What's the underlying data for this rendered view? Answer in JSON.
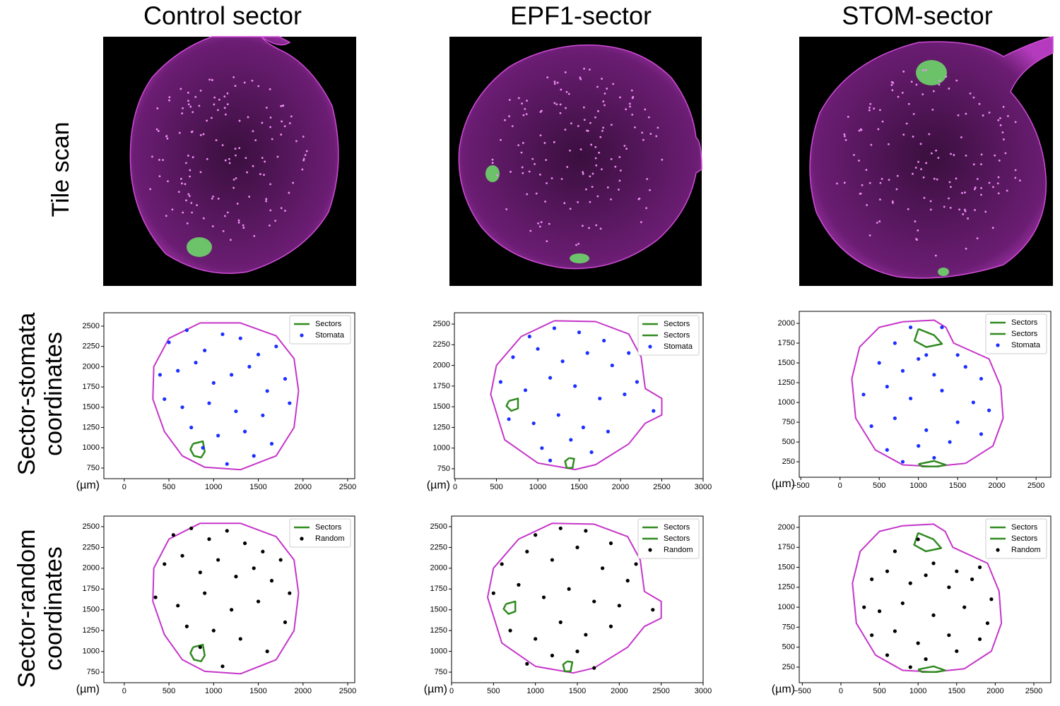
{
  "column_titles": [
    "Control sector",
    "EPF1-sector",
    "STOM-sector"
  ],
  "row_labels": [
    [
      "Tile scan"
    ],
    [
      "Sector-stomata",
      "coordinates"
    ],
    [
      "Sector-random",
      "coordinates"
    ]
  ],
  "chart_data": [
    {
      "type": "scatter",
      "x_label": "(µm)",
      "xlim": [
        -228,
        2579
      ],
      "ylim": [
        619,
        2665
      ],
      "xticks": [
        0,
        500,
        1000,
        1500,
        2000,
        2500
      ],
      "yticks": [
        750,
        1000,
        1250,
        1500,
        1750,
        2000,
        2250,
        2500
      ],
      "outline": {
        "color": "#c535c9",
        "x": [
          850,
          1300,
          1700,
          1900,
          1950,
          1900,
          1700,
          1300,
          900,
          650,
          450,
          320,
          330,
          500,
          850
        ],
        "y": [
          2540,
          2540,
          2380,
          2100,
          1700,
          1250,
          900,
          730,
          760,
          900,
          1200,
          1600,
          2000,
          2350,
          2540
        ]
      },
      "series": [
        {
          "name": "Sectors",
          "type": "line",
          "color": "#2f8a1f",
          "x": [
            770,
            880,
            900,
            860,
            780,
            740,
            770
          ],
          "y": [
            1050,
            1080,
            950,
            880,
            900,
            980,
            1050
          ]
        },
        {
          "name": "Stomata",
          "type": "scatter",
          "color": "#1c2fff",
          "x": [
            500,
            700,
            900,
            1100,
            1300,
            1500,
            1700,
            600,
            800,
            1000,
            1200,
            1400,
            1600,
            1800,
            450,
            650,
            950,
            1250,
            1550,
            1850,
            750,
            1050,
            1350,
            1650,
            400,
            1150,
            880,
            1450
          ],
          "y": [
            2300,
            2450,
            2200,
            2400,
            2350,
            2150,
            2250,
            1950,
            2050,
            1800,
            1900,
            2000,
            1700,
            1850,
            1600,
            1500,
            1550,
            1450,
            1400,
            1550,
            1250,
            1150,
            1200,
            1050,
            1900,
            800,
            1000,
            900
          ]
        }
      ]
    },
    {
      "type": "scatter",
      "x_label": "(µm)",
      "xlim": [
        -9,
        3000
      ],
      "ylim": [
        630,
        2637
      ],
      "xticks": [
        0,
        500,
        1000,
        1500,
        2000,
        2500,
        3000
      ],
      "yticks": [
        750,
        1000,
        1250,
        1500,
        1750,
        2000,
        2250,
        2500
      ],
      "outline": {
        "color": "#c535c9",
        "x": [
          1200,
          1700,
          2100,
          2250,
          2300,
          2500,
          2500,
          2300,
          2100,
          1700,
          1450,
          1000,
          600,
          430,
          500,
          800,
          1200
        ],
        "y": [
          2540,
          2530,
          2380,
          2100,
          1720,
          1600,
          1400,
          1300,
          1050,
          800,
          740,
          820,
          1100,
          1650,
          2000,
          2350,
          2540
        ]
      },
      "series": [
        {
          "name": "Sectors",
          "type": "line",
          "color": "#2f8a1f",
          "x": [
            650,
            760,
            760,
            680,
            620,
            650
          ],
          "y": [
            1570,
            1600,
            1480,
            1450,
            1510,
            1570
          ]
        },
        {
          "name": "Sectors",
          "type": "line",
          "color": "#2f8a1f",
          "x": [
            1380,
            1440,
            1420,
            1350,
            1330,
            1380
          ],
          "y": [
            880,
            870,
            760,
            760,
            840,
            880
          ]
        },
        {
          "name": "Stomata",
          "type": "scatter",
          "color": "#1c2fff",
          "x": [
            900,
            1200,
            1500,
            1800,
            2100,
            700,
            1000,
            1300,
            1600,
            1900,
            2200,
            550,
            850,
            1150,
            1450,
            1750,
            2050,
            2400,
            650,
            950,
            1250,
            1550,
            1850,
            1050,
            1650,
            1400,
            1150
          ],
          "y": [
            2350,
            2450,
            2400,
            2300,
            2150,
            2100,
            2200,
            2050,
            2150,
            2000,
            1800,
            1800,
            1700,
            1850,
            1750,
            1600,
            1650,
            1450,
            1350,
            1300,
            1400,
            1250,
            1200,
            1000,
            950,
            1100,
            850
          ]
        }
      ]
    },
    {
      "type": "scatter",
      "x_label": "(µm)",
      "xlim": [
        -520,
        2688
      ],
      "ylim": [
        54,
        2152
      ],
      "xticks": [
        {
          "value": -500,
          "label": "−500"
        },
        0,
        500,
        1000,
        1500,
        2000,
        2500
      ],
      "yticks": [
        250,
        500,
        750,
        1000,
        1250,
        1500,
        1750,
        2000
      ],
      "outline": {
        "color": "#c535c9",
        "x": [
          800,
          1200,
          1350,
          1450,
          1900,
          2050,
          2080,
          1950,
          1600,
          1200,
          800,
          450,
          200,
          150,
          250,
          500,
          800
        ],
        "y": [
          2020,
          2040,
          1950,
          1750,
          1550,
          1200,
          800,
          450,
          230,
          190,
          210,
          400,
          800,
          1300,
          1700,
          1950,
          2020
        ]
      },
      "series": [
        {
          "name": "Sectors",
          "type": "line",
          "color": "#2f8a1f",
          "x": [
            1000,
            1200,
            1300,
            1100,
            950,
            1000
          ],
          "y": [
            1930,
            1850,
            1740,
            1700,
            1780,
            1930
          ]
        },
        {
          "name": "Sectors",
          "type": "line",
          "color": "#2f8a1f",
          "x": [
            1000,
            1200,
            1350,
            1250,
            1050,
            1000
          ],
          "y": [
            220,
            260,
            210,
            190,
            190,
            220
          ]
        },
        {
          "name": "Stomata",
          "type": "scatter",
          "color": "#1c2fff",
          "x": [
            900,
            1100,
            1300,
            700,
            1500,
            500,
            800,
            1000,
            1200,
            1600,
            1800,
            300,
            600,
            900,
            1300,
            1700,
            1900,
            400,
            700,
            1100,
            1500,
            1800,
            600,
            1000,
            1400,
            1200,
            800
          ],
          "y": [
            1950,
            1600,
            1950,
            1750,
            1600,
            1500,
            1400,
            1550,
            1350,
            1450,
            1300,
            1100,
            1200,
            1050,
            1150,
            1000,
            900,
            700,
            800,
            650,
            750,
            600,
            400,
            450,
            500,
            300,
            250
          ]
        }
      ]
    },
    {
      "type": "scatter",
      "x_label": "(µm)",
      "xlim": [
        -228,
        2579
      ],
      "ylim": [
        623,
        2627
      ],
      "xticks": [
        0,
        500,
        1000,
        1500,
        2000,
        2500
      ],
      "yticks": [
        750,
        1000,
        1250,
        1500,
        1750,
        2000,
        2250,
        2500
      ],
      "outline": {
        "color": "#c535c9",
        "x": [
          850,
          1300,
          1700,
          1900,
          1950,
          1900,
          1700,
          1300,
          900,
          650,
          450,
          320,
          330,
          500,
          850
        ],
        "y": [
          2540,
          2540,
          2380,
          2100,
          1700,
          1250,
          900,
          730,
          760,
          900,
          1200,
          1600,
          2000,
          2350,
          2540
        ]
      },
      "series": [
        {
          "name": "Sectors",
          "type": "line",
          "color": "#2f8a1f",
          "x": [
            770,
            880,
            900,
            860,
            780,
            740,
            770
          ],
          "y": [
            1050,
            1080,
            950,
            880,
            900,
            980,
            1050
          ]
        },
        {
          "name": "Random",
          "type": "scatter",
          "color": "#000000",
          "x": [
            550,
            750,
            950,
            1150,
            1350,
            1550,
            1750,
            450,
            650,
            850,
            1050,
            1250,
            1450,
            1650,
            1850,
            350,
            600,
            900,
            1200,
            1500,
            1800,
            700,
            1000,
            1300,
            1600,
            850,
            1100
          ],
          "y": [
            2400,
            2480,
            2350,
            2450,
            2300,
            2200,
            2100,
            2050,
            2150,
            1950,
            2100,
            1900,
            2000,
            1850,
            1700,
            1650,
            1550,
            1700,
            1500,
            1600,
            1350,
            1300,
            1250,
            1150,
            1000,
            1050,
            820
          ]
        }
      ]
    },
    {
      "type": "scatter",
      "x_label": "(µm)",
      "xlim": [
        0,
        3000
      ],
      "ylim": [
        623,
        2627
      ],
      "xticks": [
        0,
        500,
        1000,
        1500,
        2000,
        2500,
        3000
      ],
      "yticks": [
        750,
        1000,
        1250,
        1500,
        1750,
        2000,
        2250,
        2500
      ],
      "outline": {
        "color": "#c535c9",
        "x": [
          1200,
          1700,
          2100,
          2250,
          2300,
          2500,
          2500,
          2300,
          2100,
          1700,
          1450,
          1000,
          600,
          430,
          500,
          800,
          1200
        ],
        "y": [
          2540,
          2530,
          2380,
          2100,
          1720,
          1600,
          1400,
          1300,
          1050,
          800,
          740,
          820,
          1100,
          1650,
          2000,
          2350,
          2540
        ]
      },
      "series": [
        {
          "name": "Sectors",
          "type": "line",
          "color": "#2f8a1f",
          "x": [
            650,
            760,
            760,
            680,
            620,
            650
          ],
          "y": [
            1570,
            1600,
            1480,
            1450,
            1510,
            1570
          ]
        },
        {
          "name": "Sectors",
          "type": "line",
          "color": "#2f8a1f",
          "x": [
            1380,
            1440,
            1420,
            1350,
            1330,
            1380
          ],
          "y": [
            880,
            870,
            760,
            760,
            840,
            880
          ]
        },
        {
          "name": "Random",
          "type": "scatter",
          "color": "#000000",
          "x": [
            1000,
            1300,
            1600,
            1900,
            2200,
            600,
            900,
            1200,
            1500,
            1800,
            2100,
            500,
            800,
            1100,
            1400,
            1700,
            2000,
            2400,
            700,
            1000,
            1300,
            1600,
            1900,
            1200,
            1500,
            900,
            1700
          ],
          "y": [
            2400,
            2480,
            2450,
            2300,
            2050,
            2050,
            2200,
            2100,
            2250,
            2000,
            1850,
            1700,
            1800,
            1650,
            1750,
            1600,
            1550,
            1500,
            1250,
            1150,
            1350,
            1200,
            1300,
            950,
            1000,
            850,
            800
          ]
        }
      ]
    },
    {
      "type": "scatter",
      "x_label": "(µm)",
      "xlim": [
        -540,
        2720
      ],
      "ylim": [
        55,
        2141
      ],
      "xticks": [
        {
          "value": -500,
          "label": "−500"
        },
        0,
        500,
        1000,
        1500,
        2000,
        2500
      ],
      "yticks": [
        250,
        500,
        750,
        1000,
        1250,
        1500,
        1750,
        2000
      ],
      "outline": {
        "color": "#c535c9",
        "x": [
          800,
          1200,
          1350,
          1450,
          1900,
          2050,
          2080,
          1950,
          1600,
          1200,
          800,
          450,
          200,
          150,
          250,
          500,
          800
        ],
        "y": [
          2020,
          2040,
          1950,
          1750,
          1550,
          1200,
          800,
          450,
          230,
          190,
          210,
          400,
          800,
          1300,
          1700,
          1950,
          2020
        ]
      },
      "series": [
        {
          "name": "Sectors",
          "type": "line",
          "color": "#2f8a1f",
          "x": [
            1000,
            1200,
            1300,
            1100,
            950,
            1000
          ],
          "y": [
            1930,
            1850,
            1740,
            1700,
            1780,
            1930
          ]
        },
        {
          "name": "Sectors",
          "type": "line",
          "color": "#2f8a1f",
          "x": [
            1000,
            1200,
            1350,
            1250,
            1050,
            1000
          ],
          "y": [
            220,
            260,
            210,
            190,
            190,
            220
          ]
        },
        {
          "name": "Random",
          "type": "scatter",
          "color": "#000000",
          "x": [
            1000,
            700,
            1200,
            1500,
            1800,
            400,
            600,
            900,
            1100,
            1400,
            1700,
            1950,
            300,
            500,
            800,
            1200,
            1600,
            1900,
            400,
            700,
            1000,
            1400,
            1800,
            600,
            1100,
            1500,
            900
          ],
          "y": [
            1850,
            1700,
            1550,
            1450,
            1500,
            1350,
            1450,
            1300,
            1400,
            1250,
            1350,
            1100,
            1000,
            950,
            1050,
            900,
            1000,
            800,
            650,
            700,
            550,
            650,
            600,
            400,
            350,
            450,
            250
          ]
        }
      ]
    }
  ]
}
